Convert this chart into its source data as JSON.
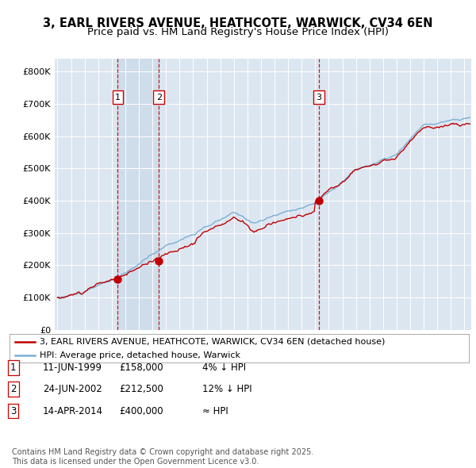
{
  "title": "3, EARL RIVERS AVENUE, HEATHCOTE, WARWICK, CV34 6EN",
  "subtitle": "Price paid vs. HM Land Registry's House Price Index (HPI)",
  "ylabel_ticks": [
    "£0",
    "£100K",
    "£200K",
    "£300K",
    "£400K",
    "£500K",
    "£600K",
    "£700K",
    "£800K"
  ],
  "ytick_vals": [
    0,
    100000,
    200000,
    300000,
    400000,
    500000,
    600000,
    700000,
    800000
  ],
  "ylim": [
    0,
    840000
  ],
  "xlim_start": 1994.8,
  "xlim_end": 2025.5,
  "hpi_color": "#7bafd4",
  "price_color": "#c00000",
  "plot_bg": "#dce6f1",
  "shade_color": "#c8d8ea",
  "vline_color": "#cc0000",
  "transactions": [
    {
      "label": "1",
      "date": 1999.44,
      "price": 158000,
      "text": "11-JUN-1999",
      "amount": "£158,000",
      "vs_hpi": "4% ↓ HPI"
    },
    {
      "label": "2",
      "date": 2002.48,
      "price": 212500,
      "text": "24-JUN-2002",
      "amount": "£212,500",
      "vs_hpi": "12% ↓ HPI"
    },
    {
      "label": "3",
      "date": 2014.28,
      "price": 400000,
      "text": "14-APR-2014",
      "amount": "£400,000",
      "vs_hpi": "≈ HPI"
    }
  ],
  "legend_entries": [
    "3, EARL RIVERS AVENUE, HEATHCOTE, WARWICK, CV34 6EN (detached house)",
    "HPI: Average price, detached house, Warwick"
  ],
  "footnote": "Contains HM Land Registry data © Crown copyright and database right 2025.\nThis data is licensed under the Open Government Licence v3.0.",
  "title_fontsize": 10.5,
  "subtitle_fontsize": 9.5,
  "tick_fontsize": 8,
  "legend_fontsize": 8,
  "table_fontsize": 8.5,
  "footnote_fontsize": 7
}
